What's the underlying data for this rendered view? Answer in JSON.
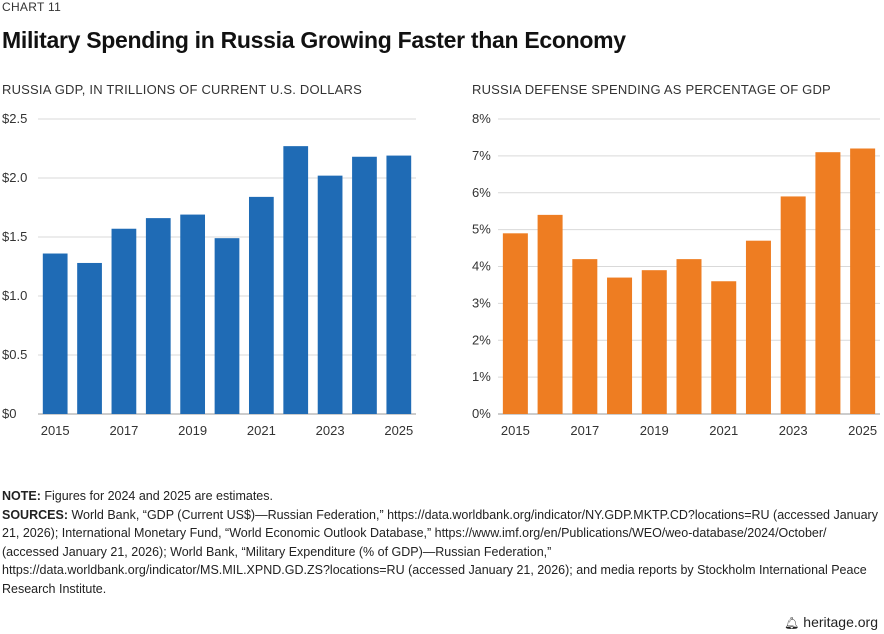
{
  "header": {
    "chart_label": "CHART 11",
    "title": "Military Spending in Russia Growing Faster than Economy"
  },
  "notes": {
    "note_label": "NOTE:",
    "note_text": " Figures for 2024 and 2025 are estimates.",
    "sources_label": "SOURCES:",
    "sources_text": " World Bank, “GDP (Current US$)—Russian Federation,” https://data.worldbank.org/indicator/NY.GDP.MKTP.CD?locations=RU (accessed January 21, 2026); International Monetary Fund, “World Economic Outlook Database,” https://www.imf.org/en/Publications/WEO/weo-database/2024/October/ (accessed January 21, 2026); World Bank, “Military Expenditure (% of GDP)—Russian Federation,” https://data.worldbank.org/indicator/MS.MIL.XPND.GD.ZS?locations=RU (accessed January 21, 2026); and media reports by Stockholm International Peace Research Institute."
  },
  "brand": {
    "text": "heritage.org",
    "icon": "bell-icon"
  },
  "chart_data": [
    {
      "type": "bar",
      "title": "RUSSIA GDP, IN TRILLIONS OF CURRENT U.S. DOLLARS",
      "categories": [
        "2015",
        "2016",
        "2017",
        "2018",
        "2019",
        "2020",
        "2021",
        "2022",
        "2023",
        "2024",
        "2025"
      ],
      "x_tick_labels": [
        "2015",
        "2017",
        "2019",
        "2021",
        "2023",
        "2025"
      ],
      "values": [
        1.36,
        1.28,
        1.57,
        1.66,
        1.69,
        1.49,
        1.84,
        2.27,
        2.02,
        2.18,
        2.19
      ],
      "ylim": [
        0,
        2.5
      ],
      "y_ticks": [
        0,
        0.5,
        1.0,
        1.5,
        2.0,
        2.5
      ],
      "y_tick_labels": [
        "$0",
        "$0.5",
        "$1.0",
        "$1.5",
        "$2.0",
        "$2.5"
      ],
      "color": "#1f6bb5",
      "grid": true
    },
    {
      "type": "bar",
      "title": "RUSSIA DEFENSE SPENDING AS PERCENTAGE OF GDP",
      "categories": [
        "2015",
        "2016",
        "2017",
        "2018",
        "2019",
        "2020",
        "2021",
        "2022",
        "2023",
        "2024",
        "2025"
      ],
      "x_tick_labels": [
        "2015",
        "2017",
        "2019",
        "2021",
        "2023",
        "2025"
      ],
      "values": [
        4.9,
        5.4,
        4.2,
        3.7,
        3.9,
        4.2,
        3.6,
        4.7,
        5.9,
        7.1,
        7.2
      ],
      "ylim": [
        0,
        8
      ],
      "y_ticks": [
        0,
        1,
        2,
        3,
        4,
        5,
        6,
        7,
        8
      ],
      "y_tick_labels": [
        "0%",
        "1%",
        "2%",
        "3%",
        "4%",
        "5%",
        "6%",
        "7%",
        "8%"
      ],
      "color": "#ee7d22",
      "grid": true
    }
  ]
}
